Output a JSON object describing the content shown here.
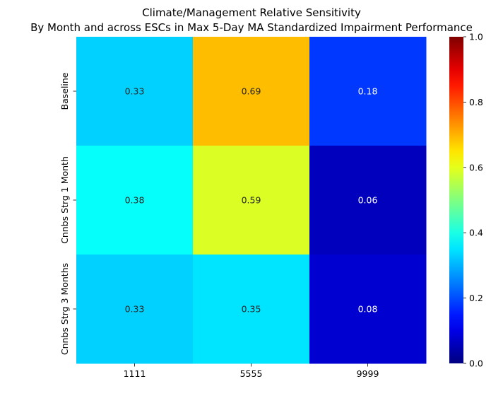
{
  "chart_data": {
    "type": "heatmap",
    "title": "Climate/Management Relative Sensitivity",
    "subtitle": "By Month and across ESCs in Max 5-Day MA Standardized Impairment Performance",
    "x_categories": [
      "1111",
      "5555",
      "9999"
    ],
    "y_categories": [
      "Baseline",
      "Cnnbs Strg 1 Month",
      "Cnnbs Strg 3 Months"
    ],
    "values": [
      [
        0.33,
        0.69,
        0.18
      ],
      [
        0.38,
        0.59,
        0.06
      ],
      [
        0.33,
        0.35,
        0.08
      ]
    ],
    "value_labels": [
      [
        "0.33",
        "0.69",
        "0.18"
      ],
      [
        "0.38",
        "0.59",
        "0.06"
      ],
      [
        "0.33",
        "0.35",
        "0.08"
      ]
    ],
    "colorscale": "jet",
    "vmin": 0.0,
    "vmax": 1.0,
    "colorbar_ticks": [
      "0.0",
      "0.2",
      "0.4",
      "0.6",
      "0.8",
      "1.0"
    ],
    "colorbar_tick_values": [
      0.0,
      0.2,
      0.4,
      0.6,
      0.8,
      1.0
    ],
    "grid": false
  }
}
